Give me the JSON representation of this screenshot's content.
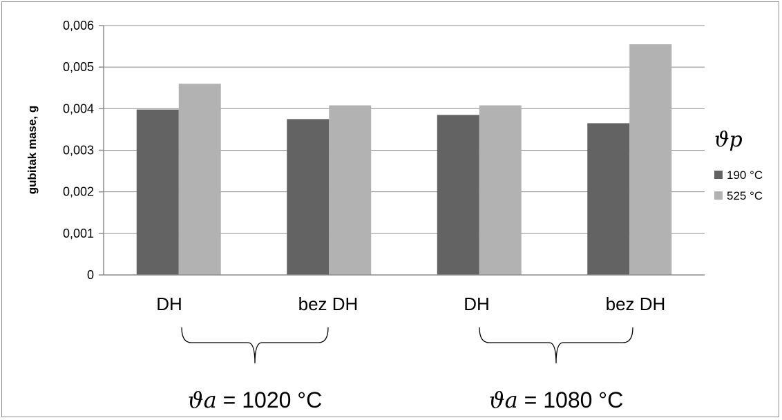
{
  "chart_data": {
    "type": "bar",
    "ylabel": "gubitak mase, g",
    "ylim": [
      0,
      0.006
    ],
    "yticks": [
      "0",
      "0,001",
      "0,002",
      "0,003",
      "0,004",
      "0,005",
      "0,006"
    ],
    "categories": [
      "DH",
      "bez DH",
      "DH",
      "bez DH"
    ],
    "legend_title": "ϑp",
    "legend_position": "right",
    "grid": "horizontal",
    "series": [
      {
        "name": "190 °C",
        "color": "#636363",
        "values": [
          0.00398,
          0.00375,
          0.00385,
          0.00365
        ]
      },
      {
        "name": "525 °C",
        "color": "#b2b2b2",
        "values": [
          0.0046,
          0.00408,
          0.00408,
          0.00555
        ]
      }
    ],
    "groups": [
      {
        "symbol": "ϑa",
        "label": " = 1020 °C",
        "categories": [
          0,
          1
        ]
      },
      {
        "symbol": "ϑa",
        "label": " = 1080 °C",
        "categories": [
          2,
          3
        ]
      }
    ]
  }
}
